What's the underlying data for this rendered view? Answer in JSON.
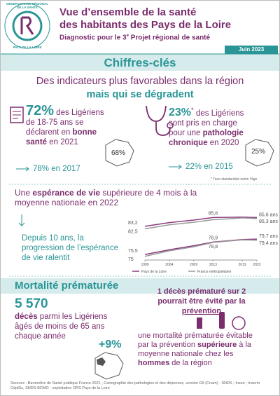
{
  "header": {
    "logo_top": "OBSERVATOIRE RÉGIONAL DE LA SANTÉ",
    "logo_bottom": "PAYS DE LA LOIRE",
    "title_line1": "Vue d’ensemble de la santé",
    "title_line2": "des habitants des Pays de la Loire",
    "subtitle_a": "Diagnostic pour le 3",
    "subtitle_sup": "e",
    "subtitle_b": " Projet régional de santé",
    "date": "Juin 2023"
  },
  "band": "Chiffres-clés",
  "headline": {
    "line1": "Des indicateurs plus favorables dans la région",
    "line2": "mais qui se dégradent"
  },
  "block1": {
    "value": "72%",
    "text_a": " des Ligériens de 18-75 ans se déclarent en ",
    "highlight": "bonne santé",
    "text_b": " en 2021",
    "national": "68%",
    "previous": "78% en 2017"
  },
  "block2": {
    "value": "23%",
    "star": "*",
    "text_a": " des Ligériens sont pris en charge pour une ",
    "highlight": "pathologie chronique",
    "text_b": " en 2020",
    "national": "25%",
    "previous": "22% en 2015",
    "note": "* Taux standardisé selon l’âge"
  },
  "life": {
    "text_a": "Une ",
    "highlight": "espérance de vie",
    "text_b": " supérieure de 4 mois à la moyenne nationale en 2022",
    "trend": "Depuis 10 ans, la progression de l’espérance de vie ralentit"
  },
  "chart_data": {
    "type": "line",
    "x": [
      1999,
      2004,
      2009,
      2013,
      2019,
      2022
    ],
    "xlim": [
      1999,
      2022
    ],
    "xticks": [
      1999,
      2004,
      2009,
      2013,
      2019,
      2022
    ],
    "ylim": [
      74,
      87
    ],
    "series": [
      {
        "name": "Pays de la Loire",
        "color": "#8b3a80",
        "values": [
          83.2,
          84.2,
          84.9,
          85.6,
          85.7,
          85.6
        ],
        "value_labels": [
          "83,2",
          null,
          null,
          "85,6",
          null,
          "85,6 ans"
        ]
      },
      {
        "name": "France métropolitaine",
        "color": "#9a9a9a",
        "values": [
          82.5,
          83.6,
          84.3,
          85.0,
          85.5,
          85.3
        ],
        "value_labels": [
          "82,5",
          null,
          null,
          null,
          null,
          "85,3 ans"
        ]
      },
      {
        "name": "Pays de la Loire",
        "color": "#8b3a80",
        "values": [
          75.5,
          76.8,
          77.9,
          78.9,
          79.6,
          79.7
        ],
        "value_labels": [
          "75,5",
          null,
          null,
          "78,9",
          null,
          "79,7 ans"
        ]
      },
      {
        "name": "France métropolitaine",
        "color": "#9a9a9a",
        "values": [
          75,
          76.5,
          77.6,
          78.8,
          79.5,
          79.4
        ],
        "value_labels": [
          "75",
          null,
          null,
          "78,8",
          null,
          "79,4 ans"
        ]
      }
    ]
  },
  "mortality": {
    "title": "Mortalité prématurée",
    "count": "5 570",
    "count_word": "décès",
    "count_text": " parmi les Ligériens âgés de moins de 65 ans chaque année",
    "avoidable_a": "1 décès prématuré sur 2 pourrait être évité par la ",
    "avoidable_b": "prévention",
    "excess": "+9%",
    "excess_a": "une mortalité prématurée évitable par la prévention ",
    "excess_hl1": "supérieure",
    "excess_b": " à la moyenne nationale chez les ",
    "excess_hl2": "hommes",
    "excess_c": " de la région"
  },
  "sources": "Sources : Baromètre de Santé publique France 2021 ; Cartographie des pathologies et des dépenses, version G9 (Cnam) - SNDS ; Insee ; Inserm CépiDc, SNDS-BCMO - exploitation ORS Pays de la Loire"
}
